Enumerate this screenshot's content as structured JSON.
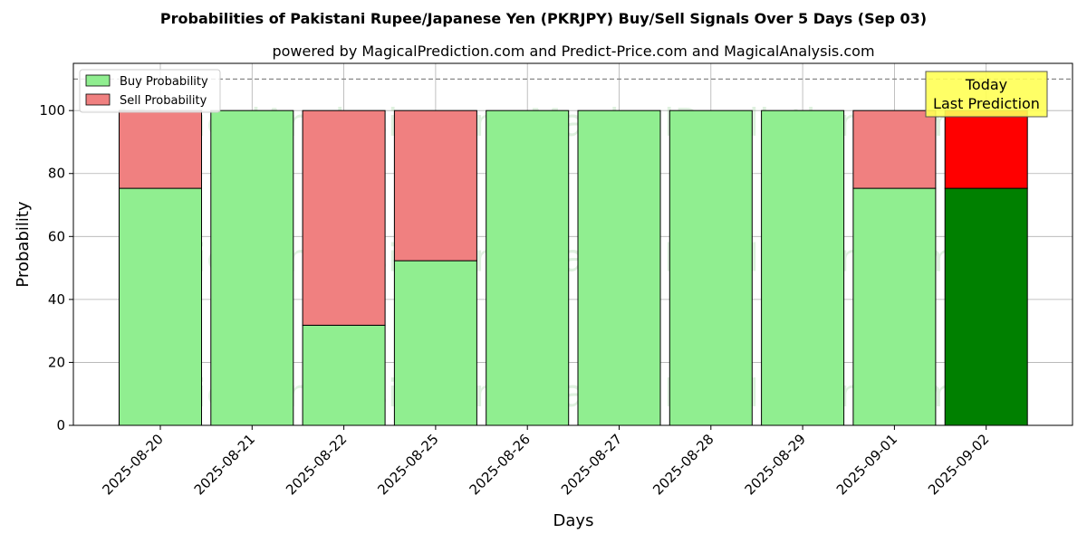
{
  "chart_data": {
    "type": "bar",
    "stacked": true,
    "title": "Probabilities of Pakistani Rupee/Japanese Yen (PKRJPY) Buy/Sell Signals Over 5 Days (Sep 03)",
    "subtitle": "powered by MagicalPrediction.com and Predict-Price.com and MagicalAnalysis.com",
    "xlabel": "Days",
    "ylabel": "Probability",
    "ylim": [
      0,
      115
    ],
    "yticks": [
      0,
      20,
      40,
      60,
      80,
      100
    ],
    "reference_line": 110,
    "grid": true,
    "legend_placement": "top-left",
    "categories": [
      "2025-08-20",
      "2025-08-21",
      "2025-08-22",
      "2025-08-25",
      "2025-08-26",
      "2025-08-27",
      "2025-08-28",
      "2025-08-29",
      "2025-09-01",
      "2025-09-02"
    ],
    "series": [
      {
        "name": "Buy Probability",
        "values": [
          75.3,
          100,
          31.8,
          52.3,
          100,
          100,
          100,
          100,
          75.3,
          75.3
        ],
        "color": "#90EE90",
        "last_color": "#008000"
      },
      {
        "name": "Sell Probability",
        "values": [
          24.7,
          0,
          68.2,
          47.7,
          0,
          0,
          0,
          0,
          24.7,
          24.7
        ],
        "color": "#F08080",
        "last_color": "#FF0000"
      }
    ],
    "annotation": {
      "lines": [
        "Today",
        "Last Prediction"
      ],
      "color": "#FFFF55"
    },
    "watermarks": [
      "MagicalAnalysis.com",
      "MagicalPrediction.com"
    ]
  }
}
